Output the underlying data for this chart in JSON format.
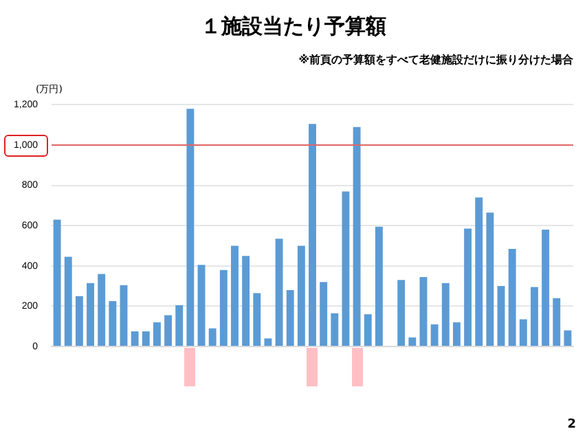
{
  "chart_data": {
    "type": "bar",
    "title": "１施設当たり予算額",
    "subtitle": "※前頁の予算額をすべて老健施設だけに振り分けた場合",
    "ylabel": "(万円)",
    "categories": [
      null,
      null,
      null,
      null,
      null,
      null,
      null,
      null,
      null,
      null,
      null,
      null,
      null,
      null,
      null,
      null,
      null,
      null,
      null,
      null,
      null,
      null,
      null,
      null,
      null,
      null,
      null,
      null,
      null,
      null,
      null,
      null,
      null,
      null,
      null,
      null,
      null,
      null,
      null,
      null,
      null,
      null,
      null,
      null,
      null,
      null,
      null
    ],
    "values": [
      630,
      445,
      250,
      315,
      360,
      225,
      305,
      75,
      75,
      120,
      155,
      205,
      1180,
      405,
      90,
      380,
      500,
      450,
      265,
      40,
      535,
      280,
      500,
      1105,
      320,
      165,
      770,
      1090,
      160,
      595,
      null,
      330,
      45,
      345,
      110,
      315,
      120,
      585,
      740,
      665,
      300,
      485,
      135,
      295,
      580,
      240,
      80
    ],
    "color": "#5b9bd5",
    "ylim": [
      0,
      1200
    ],
    "yticks": [
      0,
      200,
      400,
      600,
      800,
      {
        "value": 1000,
        "label": "1,000"
      },
      {
        "value": 1200,
        "label": "1,200"
      }
    ],
    "grid": "y",
    "ref_lines": [
      {
        "axis": "y",
        "value": 1000,
        "color": "#e06666"
      }
    ],
    "annotations": [
      "2"
    ]
  }
}
